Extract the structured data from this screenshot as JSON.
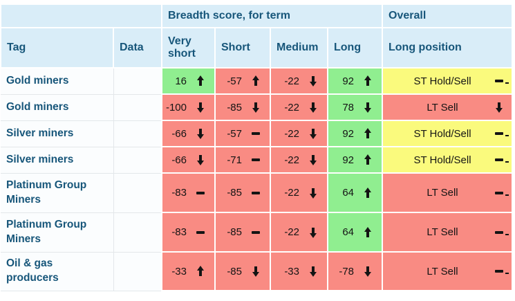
{
  "colors": {
    "header_bg": "#d9edf8",
    "positive_green": "#90ee90",
    "negative_red": "#f98b83",
    "hold_yellow": "#fafa7d",
    "row_bg": "#fbfdfe",
    "heading_text": "#17567a",
    "score_text": "#141414"
  },
  "table": {
    "group_headers": [
      {
        "label": "",
        "span": 2
      },
      {
        "label": "Breadth score, for term",
        "span": 4
      },
      {
        "label": "Overall",
        "span": 1
      }
    ],
    "columns": [
      "Tag",
      "Data",
      "Very short",
      "Short",
      "Medium",
      "Long",
      "Long position"
    ],
    "rows": [
      {
        "tag": "Gold miners",
        "data": "",
        "scores": [
          {
            "value": "16",
            "trend": "up",
            "color": "green"
          },
          {
            "value": "-57",
            "trend": "up",
            "color": "red"
          },
          {
            "value": "-22",
            "trend": "down",
            "color": "red"
          },
          {
            "value": "92",
            "trend": "up",
            "color": "green"
          }
        ],
        "overall": {
          "label": "ST Hold/Sell",
          "trend": "flat",
          "color": "yellow"
        }
      },
      {
        "tag": "Gold miners",
        "data": "",
        "scores": [
          {
            "value": "-100",
            "trend": "down",
            "color": "red"
          },
          {
            "value": "-85",
            "trend": "down",
            "color": "red"
          },
          {
            "value": "-22",
            "trend": "down",
            "color": "red"
          },
          {
            "value": "78",
            "trend": "down",
            "color": "green"
          }
        ],
        "overall": {
          "label": "LT Sell",
          "trend": "down",
          "color": "red"
        }
      },
      {
        "tag": "Silver miners",
        "data": "",
        "scores": [
          {
            "value": "-66",
            "trend": "down",
            "color": "red"
          },
          {
            "value": "-57",
            "trend": "flat",
            "color": "red"
          },
          {
            "value": "-22",
            "trend": "down",
            "color": "red"
          },
          {
            "value": "92",
            "trend": "up",
            "color": "green"
          }
        ],
        "overall": {
          "label": "ST Hold/Sell",
          "trend": "flat",
          "color": "yellow"
        }
      },
      {
        "tag": "Silver miners",
        "data": "",
        "scores": [
          {
            "value": "-66",
            "trend": "down",
            "color": "red"
          },
          {
            "value": "-71",
            "trend": "flat",
            "color": "red"
          },
          {
            "value": "-22",
            "trend": "down",
            "color": "red"
          },
          {
            "value": "92",
            "trend": "up",
            "color": "green"
          }
        ],
        "overall": {
          "label": "ST Hold/Sell",
          "trend": "flat",
          "color": "yellow"
        }
      },
      {
        "tag": "Platinum Group Miners",
        "data": "",
        "scores": [
          {
            "value": "-83",
            "trend": "flat",
            "color": "red"
          },
          {
            "value": "-85",
            "trend": "flat",
            "color": "red"
          },
          {
            "value": "-22",
            "trend": "down",
            "color": "red"
          },
          {
            "value": "64",
            "trend": "up",
            "color": "green"
          }
        ],
        "overall": {
          "label": "LT Sell",
          "trend": "flat",
          "color": "red"
        }
      },
      {
        "tag": "Platinum Group Miners",
        "data": "",
        "scores": [
          {
            "value": "-83",
            "trend": "flat",
            "color": "red"
          },
          {
            "value": "-85",
            "trend": "flat",
            "color": "red"
          },
          {
            "value": "-22",
            "trend": "down",
            "color": "red"
          },
          {
            "value": "64",
            "trend": "up",
            "color": "green"
          }
        ],
        "overall": {
          "label": "LT Sell",
          "trend": "flat",
          "color": "red"
        }
      },
      {
        "tag": "Oil & gas producers",
        "data": "",
        "scores": [
          {
            "value": "-33",
            "trend": "up",
            "color": "red"
          },
          {
            "value": "-85",
            "trend": "down",
            "color": "red"
          },
          {
            "value": "-33",
            "trend": "down",
            "color": "red"
          },
          {
            "value": "-78",
            "trend": "down",
            "color": "red"
          }
        ],
        "overall": {
          "label": "LT Sell",
          "trend": "flat",
          "color": "red"
        }
      }
    ]
  }
}
